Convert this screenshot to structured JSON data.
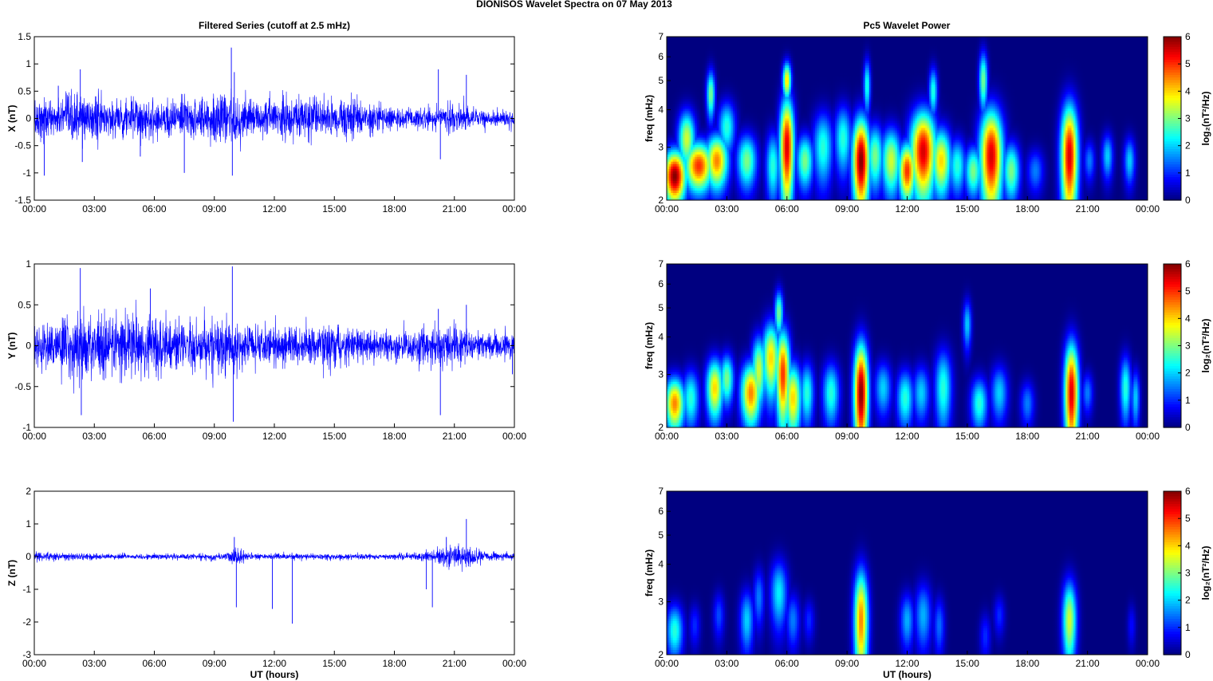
{
  "figure": {
    "suptitle": "DIONISOS Wavelet Spectra on 07 May      2013",
    "left_column_title": "Filtered Series (cutoff at 2.5 mHz)",
    "right_column_title": "Pc5 Wavelet Power"
  },
  "chart_data": [
    {
      "type": "line",
      "id": "x-series",
      "ylabel": "X (nT)",
      "xlabel": "",
      "xlim": [
        0,
        24
      ],
      "ylim": [
        -1.5,
        1.5
      ],
      "yticks": [
        "-1.5",
        "-1",
        "-0.5",
        "0",
        "0.5",
        "1",
        "1.5"
      ],
      "xticks": [
        "00:00",
        "03:00",
        "06:00",
        "09:00",
        "12:00",
        "15:00",
        "18:00",
        "21:00",
        "00:00"
      ],
      "color": "#0000ff",
      "activity": [
        [
          0,
          0.45
        ],
        [
          1,
          0.35
        ],
        [
          2,
          0.5
        ],
        [
          3,
          0.45
        ],
        [
          4,
          0.4
        ],
        [
          5,
          0.42
        ],
        [
          6,
          0.4
        ],
        [
          7,
          0.38
        ],
        [
          8,
          0.4
        ],
        [
          9,
          0.45
        ],
        [
          10,
          0.5
        ],
        [
          11,
          0.4
        ],
        [
          12,
          0.42
        ],
        [
          13,
          0.45
        ],
        [
          14,
          0.4
        ],
        [
          15,
          0.35
        ],
        [
          16,
          0.42
        ],
        [
          17,
          0.3
        ],
        [
          18,
          0.25
        ],
        [
          19,
          0.2
        ],
        [
          20,
          0.22
        ],
        [
          21,
          0.35
        ],
        [
          22,
          0.2
        ],
        [
          23,
          0.15
        ],
        [
          24,
          0.15
        ]
      ],
      "spikes": [
        [
          0.5,
          -1.05
        ],
        [
          1.2,
          0.6
        ],
        [
          2.3,
          0.9
        ],
        [
          2.4,
          -0.8
        ],
        [
          5.3,
          -0.7
        ],
        [
          7.5,
          -1.0
        ],
        [
          9.85,
          1.3
        ],
        [
          9.9,
          -1.05
        ],
        [
          10.0,
          0.85
        ],
        [
          20.2,
          0.9
        ],
        [
          20.3,
          -0.75
        ],
        [
          21.6,
          0.8
        ]
      ]
    },
    {
      "type": "line",
      "id": "y-series",
      "ylabel": "Y (nT)",
      "xlabel": "",
      "xlim": [
        0,
        24
      ],
      "ylim": [
        -1,
        1
      ],
      "yticks": [
        "-1",
        "-0.5",
        "0",
        "0.5",
        "1"
      ],
      "xticks": [
        "00:00",
        "03:00",
        "06:00",
        "09:00",
        "12:00",
        "15:00",
        "18:00",
        "21:00",
        "00:00"
      ],
      "color": "#0000ff",
      "activity": [
        [
          0,
          0.3
        ],
        [
          1,
          0.35
        ],
        [
          2,
          0.45
        ],
        [
          3,
          0.35
        ],
        [
          4,
          0.4
        ],
        [
          5,
          0.45
        ],
        [
          6,
          0.42
        ],
        [
          7,
          0.35
        ],
        [
          8,
          0.3
        ],
        [
          9,
          0.35
        ],
        [
          10,
          0.3
        ],
        [
          11,
          0.28
        ],
        [
          12,
          0.25
        ],
        [
          13,
          0.25
        ],
        [
          14,
          0.25
        ],
        [
          15,
          0.28
        ],
        [
          16,
          0.22
        ],
        [
          17,
          0.2
        ],
        [
          18,
          0.2
        ],
        [
          19,
          0.22
        ],
        [
          20,
          0.3
        ],
        [
          21,
          0.3
        ],
        [
          22,
          0.2
        ],
        [
          23,
          0.18
        ],
        [
          24,
          0.2
        ]
      ],
      "spikes": [
        [
          2.3,
          0.95
        ],
        [
          2.35,
          -0.85
        ],
        [
          5.8,
          0.7
        ],
        [
          9.9,
          0.97
        ],
        [
          9.95,
          -0.93
        ],
        [
          20.3,
          -0.85
        ],
        [
          20.2,
          0.45
        ],
        [
          21.6,
          0.5
        ],
        [
          23.9,
          -0.35
        ]
      ]
    },
    {
      "type": "line",
      "id": "z-series",
      "ylabel": "Z (nT)",
      "xlabel": "UT (hours)",
      "xlim": [
        0,
        24
      ],
      "ylim": [
        -3,
        2
      ],
      "yticks": [
        "-3",
        "-2",
        "-1",
        "0",
        "1",
        "2"
      ],
      "xticks": [
        "00:00",
        "03:00",
        "06:00",
        "09:00",
        "12:00",
        "15:00",
        "18:00",
        "21:00",
        "00:00"
      ],
      "color": "#0000ff",
      "activity": [
        [
          0,
          0.15
        ],
        [
          2,
          0.12
        ],
        [
          4,
          0.1
        ],
        [
          6,
          0.1
        ],
        [
          8,
          0.1
        ],
        [
          9.5,
          0.12
        ],
        [
          10,
          0.3
        ],
        [
          11,
          0.1
        ],
        [
          14,
          0.1
        ],
        [
          18,
          0.1
        ],
        [
          19.5,
          0.15
        ],
        [
          20.5,
          0.3
        ],
        [
          21.5,
          0.45
        ],
        [
          22.5,
          0.15
        ],
        [
          24,
          0.12
        ]
      ],
      "spikes": [
        [
          10.0,
          0.6
        ],
        [
          10.1,
          -1.55
        ],
        [
          11.9,
          -1.6
        ],
        [
          12.9,
          -2.05
        ],
        [
          19.6,
          -1.0
        ],
        [
          19.9,
          -1.55
        ],
        [
          20.6,
          0.6
        ],
        [
          21.6,
          1.15
        ],
        [
          21.7,
          -0.3
        ]
      ]
    },
    {
      "type": "heatmap",
      "id": "x-wavelet",
      "ylabel": "freq (mHz)",
      "xlabel": "",
      "xlim": [
        0,
        24
      ],
      "ylim": [
        2,
        7
      ],
      "yscale": "log",
      "yticks": [
        "2",
        "3",
        "4",
        "5",
        "6",
        "7"
      ],
      "xticks": [
        "00:00",
        "03:00",
        "06:00",
        "09:00",
        "12:00",
        "15:00",
        "18:00",
        "21:00",
        "00:00"
      ],
      "colorbar": {
        "label": "log₂(nT²/Hz)",
        "ticks": [
          "0",
          "1",
          "2",
          "3",
          "4",
          "5",
          "6"
        ],
        "range": [
          0,
          6
        ]
      },
      "blobs": [
        [
          0.4,
          2.4,
          0.4,
          0.35,
          6
        ],
        [
          1.0,
          3.2,
          0.3,
          0.5,
          3.5
        ],
        [
          1.6,
          2.6,
          0.5,
          0.35,
          5
        ],
        [
          2.5,
          2.7,
          0.4,
          0.4,
          4.5
        ],
        [
          2.2,
          4.5,
          0.15,
          0.6,
          3
        ],
        [
          3.0,
          3.5,
          0.3,
          0.5,
          2.5
        ],
        [
          4.0,
          2.7,
          0.35,
          0.4,
          3
        ],
        [
          5.3,
          2.6,
          0.25,
          0.5,
          2.5
        ],
        [
          6.0,
          3.0,
          0.25,
          0.9,
          5.5
        ],
        [
          6.0,
          5.0,
          0.15,
          0.5,
          4
        ],
        [
          6.9,
          2.7,
          0.3,
          0.4,
          3
        ],
        [
          7.8,
          3.0,
          0.35,
          0.6,
          2.5
        ],
        [
          8.8,
          3.2,
          0.3,
          0.6,
          2.5
        ],
        [
          9.7,
          2.7,
          0.3,
          0.7,
          6
        ],
        [
          10.4,
          2.8,
          0.3,
          0.5,
          3
        ],
        [
          11.2,
          2.7,
          0.35,
          0.5,
          3.5
        ],
        [
          12.0,
          2.5,
          0.3,
          0.4,
          5
        ],
        [
          12.8,
          2.9,
          0.45,
          0.7,
          5.5
        ],
        [
          13.7,
          2.7,
          0.35,
          0.5,
          4
        ],
        [
          14.5,
          2.6,
          0.3,
          0.4,
          2.5
        ],
        [
          15.3,
          2.5,
          0.3,
          0.35,
          3
        ],
        [
          16.2,
          2.8,
          0.4,
          0.8,
          5.5
        ],
        [
          17.2,
          2.5,
          0.3,
          0.4,
          3
        ],
        [
          18.4,
          2.5,
          0.3,
          0.3,
          1.5
        ],
        [
          20.1,
          2.8,
          0.3,
          0.9,
          5.5
        ],
        [
          21.1,
          2.7,
          0.2,
          0.3,
          1.5
        ],
        [
          22.0,
          2.8,
          0.2,
          0.35,
          2
        ],
        [
          23.1,
          2.7,
          0.2,
          0.35,
          2
        ],
        [
          10.0,
          4.8,
          0.12,
          0.7,
          2.5
        ],
        [
          13.3,
          4.6,
          0.15,
          0.6,
          2.5
        ],
        [
          15.8,
          5.0,
          0.15,
          0.8,
          3
        ]
      ]
    },
    {
      "type": "heatmap",
      "id": "y-wavelet",
      "ylabel": "freq (mHz)",
      "xlabel": "",
      "xlim": [
        0,
        24
      ],
      "ylim": [
        2,
        7
      ],
      "yscale": "log",
      "yticks": [
        "2",
        "3",
        "4",
        "5",
        "6",
        "7"
      ],
      "xticks": [
        "00:00",
        "03:00",
        "06:00",
        "09:00",
        "12:00",
        "15:00",
        "18:00",
        "21:00",
        "00:00"
      ],
      "colorbar": {
        "label": "log₂(nT²/Hz)",
        "ticks": [
          "0",
          "1",
          "2",
          "3",
          "4",
          "5",
          "6"
        ],
        "range": [
          0,
          6
        ]
      },
      "blobs": [
        [
          0.4,
          2.4,
          0.35,
          0.35,
          4.5
        ],
        [
          1.2,
          2.5,
          0.3,
          0.4,
          2.5
        ],
        [
          2.4,
          2.7,
          0.3,
          0.45,
          4
        ],
        [
          3.0,
          2.9,
          0.25,
          0.4,
          3
        ],
        [
          4.2,
          2.6,
          0.35,
          0.45,
          4.5
        ],
        [
          4.6,
          3.1,
          0.25,
          0.6,
          3.5
        ],
        [
          5.2,
          3.4,
          0.3,
          0.7,
          4
        ],
        [
          5.8,
          3.0,
          0.25,
          0.8,
          5
        ],
        [
          6.3,
          2.5,
          0.3,
          0.5,
          4
        ],
        [
          5.6,
          4.8,
          0.15,
          0.6,
          3
        ],
        [
          7.0,
          2.6,
          0.25,
          0.45,
          2.5
        ],
        [
          8.2,
          2.6,
          0.3,
          0.45,
          2.5
        ],
        [
          9.7,
          2.6,
          0.25,
          0.8,
          6
        ],
        [
          10.8,
          2.7,
          0.3,
          0.4,
          2
        ],
        [
          11.9,
          2.5,
          0.3,
          0.4,
          2.5
        ],
        [
          12.7,
          2.6,
          0.3,
          0.4,
          2
        ],
        [
          13.8,
          2.7,
          0.3,
          0.6,
          2.5
        ],
        [
          15.6,
          2.4,
          0.3,
          0.35,
          2.5
        ],
        [
          16.6,
          2.6,
          0.3,
          0.4,
          2
        ],
        [
          18.0,
          2.4,
          0.25,
          0.3,
          1.5
        ],
        [
          20.2,
          2.6,
          0.25,
          0.8,
          5.5
        ],
        [
          21.0,
          2.6,
          0.2,
          0.3,
          1.5
        ],
        [
          22.9,
          2.7,
          0.2,
          0.5,
          2.5
        ],
        [
          23.4,
          2.5,
          0.15,
          0.4,
          2
        ],
        [
          15.0,
          4.4,
          0.15,
          0.6,
          2
        ]
      ]
    },
    {
      "type": "heatmap",
      "id": "z-wavelet",
      "ylabel": "freq (mHz)",
      "xlabel": "UT (hours)",
      "xlim": [
        0,
        24
      ],
      "ylim": [
        2,
        7
      ],
      "yscale": "log",
      "yticks": [
        "2",
        "3",
        "4",
        "5",
        "6",
        "7"
      ],
      "xticks": [
        "00:00",
        "03:00",
        "06:00",
        "09:00",
        "12:00",
        "15:00",
        "18:00",
        "21:00",
        "00:00"
      ],
      "colorbar": {
        "label": "log₂(nT²/Hz)",
        "ticks": [
          "0",
          "1",
          "2",
          "3",
          "4",
          "5",
          "6"
        ],
        "range": [
          0,
          6
        ]
      },
      "blobs": [
        [
          0.4,
          2.4,
          0.3,
          0.35,
          2.5
        ],
        [
          1.4,
          2.5,
          0.2,
          0.3,
          1
        ],
        [
          2.6,
          2.7,
          0.2,
          0.35,
          1.2
        ],
        [
          4.0,
          2.6,
          0.25,
          0.45,
          2
        ],
        [
          4.6,
          3.1,
          0.2,
          0.5,
          1.5
        ],
        [
          5.6,
          3.2,
          0.3,
          0.6,
          2.2
        ],
        [
          6.3,
          2.6,
          0.25,
          0.4,
          1.5
        ],
        [
          7.1,
          2.6,
          0.2,
          0.3,
          1
        ],
        [
          9.7,
          2.6,
          0.25,
          0.8,
          4.5
        ],
        [
          12.0,
          2.6,
          0.25,
          0.4,
          1.8
        ],
        [
          12.8,
          2.7,
          0.3,
          0.5,
          1.8
        ],
        [
          13.6,
          2.5,
          0.2,
          0.4,
          1.4
        ],
        [
          15.9,
          2.3,
          0.2,
          0.3,
          1
        ],
        [
          16.6,
          2.7,
          0.2,
          0.3,
          1
        ],
        [
          20.1,
          2.6,
          0.25,
          0.6,
          3.5
        ],
        [
          23.2,
          2.5,
          0.15,
          0.3,
          0.8
        ]
      ]
    }
  ]
}
